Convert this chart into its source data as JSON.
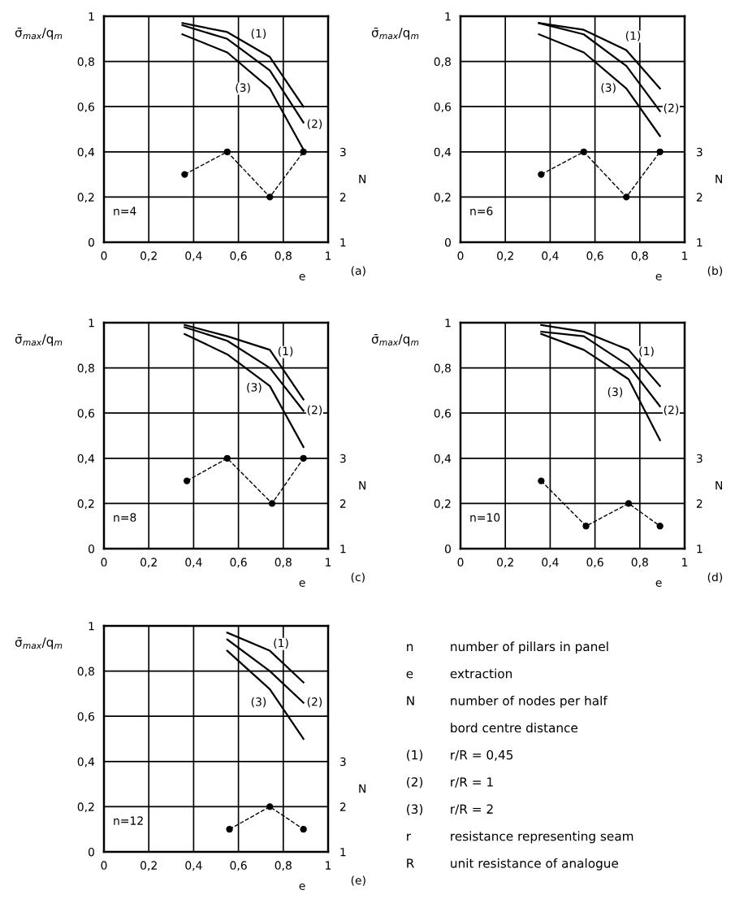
{
  "chart_data": [
    {
      "type": "line",
      "xlabel": "e",
      "ylabel": "σ̄$_{max}$/q$_{m}$",
      "y2label": "N",
      "grid": true,
      "xlim": [
        0,
        1
      ],
      "ylim": [
        0,
        1
      ],
      "y2lim": [
        1,
        6
      ],
      "xticks": [
        0,
        {
          "value": 0.2,
          "label": "0,2"
        },
        {
          "value": 0.4,
          "label": "0,4"
        },
        {
          "value": 0.6,
          "label": "0,6"
        },
        {
          "value": 0.8,
          "label": "0,8"
        },
        1
      ],
      "yticks": [
        0,
        {
          "value": 0.2,
          "label": "0,2"
        },
        {
          "value": 0.4,
          "label": "0,4"
        },
        {
          "value": 0.6,
          "label": "0,6"
        },
        {
          "value": 0.8,
          "label": "0,8"
        },
        1
      ],
      "y2ticks": [
        1,
        2,
        3
      ],
      "series": [
        {
          "color": "#000000",
          "x": [
            0.35,
            0.55,
            0.74,
            0.89
          ],
          "values": [
            0.97,
            0.93,
            0.82,
            0.6
          ]
        },
        {
          "color": "#000000",
          "x": [
            0.35,
            0.55,
            0.74,
            0.89
          ],
          "values": [
            0.96,
            0.9,
            0.76,
            0.53
          ]
        },
        {
          "color": "#000000",
          "x": [
            0.35,
            0.55,
            0.74,
            0.89
          ],
          "values": [
            0.92,
            0.84,
            0.68,
            0.41
          ]
        },
        {
          "color": "#000000",
          "axis": "y2",
          "marker": "circle",
          "line_style": "dashed",
          "x": [
            0.36,
            0.55,
            0.74,
            0.89
          ],
          "values": [
            2.5,
            3,
            2,
            3
          ]
        }
      ],
      "annotations": [
        "n=4",
        "(a)",
        {
          "text": "(1)",
          "x": 0.69,
          "y": 0.92
        },
        {
          "text": "(2)",
          "x": 0.94,
          "y": 0.52
        },
        {
          "text": "(3)",
          "x": 0.62,
          "y": 0.68
        }
      ]
    },
    {
      "type": "line",
      "xlabel": "e",
      "ylabel": "σ̄$_{max}$/q$_{m}$",
      "y2label": "N",
      "grid": true,
      "xlim": [
        0,
        1
      ],
      "ylim": [
        0,
        1
      ],
      "y2lim": [
        1,
        6
      ],
      "xticks": [
        0,
        {
          "value": 0.2,
          "label": "0,2"
        },
        {
          "value": 0.4,
          "label": "0,4"
        },
        {
          "value": 0.6,
          "label": "0,6"
        },
        {
          "value": 0.8,
          "label": "0,8"
        },
        1
      ],
      "yticks": [
        0,
        {
          "value": 0.2,
          "label": "0,2"
        },
        {
          "value": 0.4,
          "label": "0,4"
        },
        {
          "value": 0.6,
          "label": "0,6"
        },
        {
          "value": 0.8,
          "label": "0,8"
        },
        1
      ],
      "y2ticks": [
        1,
        2,
        3
      ],
      "series": [
        {
          "color": "#000000",
          "x": [
            0.35,
            0.55,
            0.74,
            0.89
          ],
          "values": [
            0.97,
            0.94,
            0.85,
            0.68
          ]
        },
        {
          "color": "#000000",
          "x": [
            0.35,
            0.55,
            0.74,
            0.89
          ],
          "values": [
            0.97,
            0.92,
            0.78,
            0.58
          ]
        },
        {
          "color": "#000000",
          "x": [
            0.35,
            0.55,
            0.74,
            0.89
          ],
          "values": [
            0.92,
            0.84,
            0.68,
            0.47
          ]
        },
        {
          "color": "#000000",
          "axis": "y2",
          "marker": "circle",
          "line_style": "dashed",
          "x": [
            0.36,
            0.55,
            0.74,
            0.89
          ],
          "values": [
            2.5,
            3,
            2,
            3
          ]
        }
      ],
      "annotations": [
        "n=6",
        "(b)",
        {
          "text": "(1)",
          "x": 0.77,
          "y": 0.91
        },
        {
          "text": "(2)",
          "x": 0.94,
          "y": 0.59
        },
        {
          "text": "(3)",
          "x": 0.66,
          "y": 0.68
        }
      ]
    },
    {
      "type": "line",
      "xlabel": "e",
      "ylabel": "σ̄$_{max}$/q$_{m}$",
      "y2label": "N",
      "grid": true,
      "xlim": [
        0,
        1
      ],
      "ylim": [
        0,
        1
      ],
      "y2lim": [
        1,
        6
      ],
      "xticks": [
        0,
        {
          "value": 0.2,
          "label": "0,2"
        },
        {
          "value": 0.4,
          "label": "0,4"
        },
        {
          "value": 0.6,
          "label": "0,6"
        },
        {
          "value": 0.8,
          "label": "0,8"
        },
        1
      ],
      "yticks": [
        0,
        {
          "value": 0.2,
          "label": "0,2"
        },
        {
          "value": 0.4,
          "label": "0,4"
        },
        {
          "value": 0.6,
          "label": "0,6"
        },
        {
          "value": 0.8,
          "label": "0,8"
        },
        1
      ],
      "y2ticks": [
        1,
        2,
        3
      ],
      "series": [
        {
          "color": "#000000",
          "x": [
            0.36,
            0.55,
            0.74,
            0.89
          ],
          "values": [
            0.99,
            0.94,
            0.88,
            0.66
          ]
        },
        {
          "color": "#000000",
          "x": [
            0.36,
            0.55,
            0.74,
            0.89
          ],
          "values": [
            0.98,
            0.92,
            0.8,
            0.61
          ]
        },
        {
          "color": "#000000",
          "x": [
            0.36,
            0.55,
            0.74,
            0.89
          ],
          "values": [
            0.95,
            0.86,
            0.72,
            0.45
          ]
        },
        {
          "color": "#000000",
          "axis": "y2",
          "marker": "circle",
          "line_style": "dashed",
          "x": [
            0.37,
            0.55,
            0.75,
            0.89
          ],
          "values": [
            2.5,
            3,
            2,
            3
          ]
        }
      ],
      "annotations": [
        "n=8",
        "(c)",
        {
          "text": "(1)",
          "x": 0.81,
          "y": 0.87
        },
        {
          "text": "(2)",
          "x": 0.94,
          "y": 0.61
        },
        {
          "text": "(3)",
          "x": 0.67,
          "y": 0.71
        }
      ]
    },
    {
      "type": "line",
      "xlabel": "e",
      "ylabel": "σ̄$_{max}$/q$_{m}$",
      "y2label": "N",
      "grid": true,
      "xlim": [
        0,
        1
      ],
      "ylim": [
        0,
        1
      ],
      "y2lim": [
        1,
        6
      ],
      "xticks": [
        0,
        {
          "value": 0.2,
          "label": "0,2"
        },
        {
          "value": 0.4,
          "label": "0,4"
        },
        {
          "value": 0.6,
          "label": "0,6"
        },
        {
          "value": 0.8,
          "label": "0,8"
        },
        1
      ],
      "yticks": [
        0,
        {
          "value": 0.2,
          "label": "0,2"
        },
        {
          "value": 0.4,
          "label": "0,4"
        },
        {
          "value": 0.6,
          "label": "0,6"
        },
        {
          "value": 0.8,
          "label": "0,8"
        },
        1
      ],
      "y2ticks": [
        1,
        2,
        3
      ],
      "series": [
        {
          "color": "#000000",
          "x": [
            0.36,
            0.55,
            0.75,
            0.89
          ],
          "values": [
            0.99,
            0.96,
            0.88,
            0.72
          ]
        },
        {
          "color": "#000000",
          "x": [
            0.36,
            0.55,
            0.75,
            0.89
          ],
          "values": [
            0.96,
            0.94,
            0.81,
            0.63
          ]
        },
        {
          "color": "#000000",
          "x": [
            0.36,
            0.55,
            0.75,
            0.89
          ],
          "values": [
            0.95,
            0.88,
            0.75,
            0.48
          ]
        },
        {
          "color": "#000000",
          "axis": "y2",
          "marker": "circle",
          "line_style": "dashed",
          "x": [
            0.36,
            0.56,
            0.75,
            0.89
          ],
          "values": [
            2.5,
            1.5,
            2,
            1.5
          ]
        }
      ],
      "annotations": [
        "n=10",
        "(d)",
        {
          "text": "(1)",
          "x": 0.83,
          "y": 0.87
        },
        {
          "text": "(2)",
          "x": 0.94,
          "y": 0.61
        },
        {
          "text": "(3)",
          "x": 0.69,
          "y": 0.69
        }
      ]
    },
    {
      "type": "line",
      "xlabel": "e",
      "ylabel": "σ̄$_{max}$/q$_{m}$",
      "y2label": "N",
      "grid": true,
      "xlim": [
        0,
        1
      ],
      "ylim": [
        0,
        1
      ],
      "y2lim": [
        1,
        6
      ],
      "xticks": [
        0,
        {
          "value": 0.2,
          "label": "0,2"
        },
        {
          "value": 0.4,
          "label": "0,4"
        },
        {
          "value": 0.6,
          "label": "0,6"
        },
        {
          "value": 0.8,
          "label": "0,8"
        },
        1
      ],
      "yticks": [
        0,
        {
          "value": 0.2,
          "label": "0,2"
        },
        {
          "value": 0.4,
          "label": "0,4"
        },
        {
          "value": 0.6,
          "label": "0,6"
        },
        {
          "value": 0.8,
          "label": "0,8"
        },
        1
      ],
      "y2ticks": [
        1,
        2,
        3
      ],
      "series": [
        {
          "color": "#000000",
          "x": [
            0.55,
            0.74,
            0.89
          ],
          "values": [
            0.97,
            0.89,
            0.75
          ]
        },
        {
          "color": "#000000",
          "x": [
            0.55,
            0.74,
            0.89
          ],
          "values": [
            0.94,
            0.8,
            0.66
          ]
        },
        {
          "color": "#000000",
          "x": [
            0.55,
            0.74,
            0.89
          ],
          "values": [
            0.89,
            0.72,
            0.5
          ]
        },
        {
          "color": "#000000",
          "axis": "y2",
          "marker": "circle",
          "line_style": "dashed",
          "x": [
            0.56,
            0.74,
            0.89
          ],
          "values": [
            1.5,
            2,
            1.5
          ]
        }
      ],
      "annotations": [
        "n=12",
        "(e)",
        {
          "text": "(1)",
          "x": 0.79,
          "y": 0.92
        },
        {
          "text": "(2)",
          "x": 0.94,
          "y": 0.66
        },
        {
          "text": "(3)",
          "x": 0.69,
          "y": 0.66
        }
      ]
    },
    {
      "type": "other",
      "annotations": [
        "n\tnumber of pillars in panel",
        "e\textraction",
        "N\tnumber of nodes per half",
        "\tbord centre distance",
        "(1)\tr/R = 0,45",
        "(2)\tr/R = 1",
        "(3)\tr/R = 2",
        "r\tresistance representing seam",
        "R\tunit resistance of analogue"
      ]
    }
  ]
}
